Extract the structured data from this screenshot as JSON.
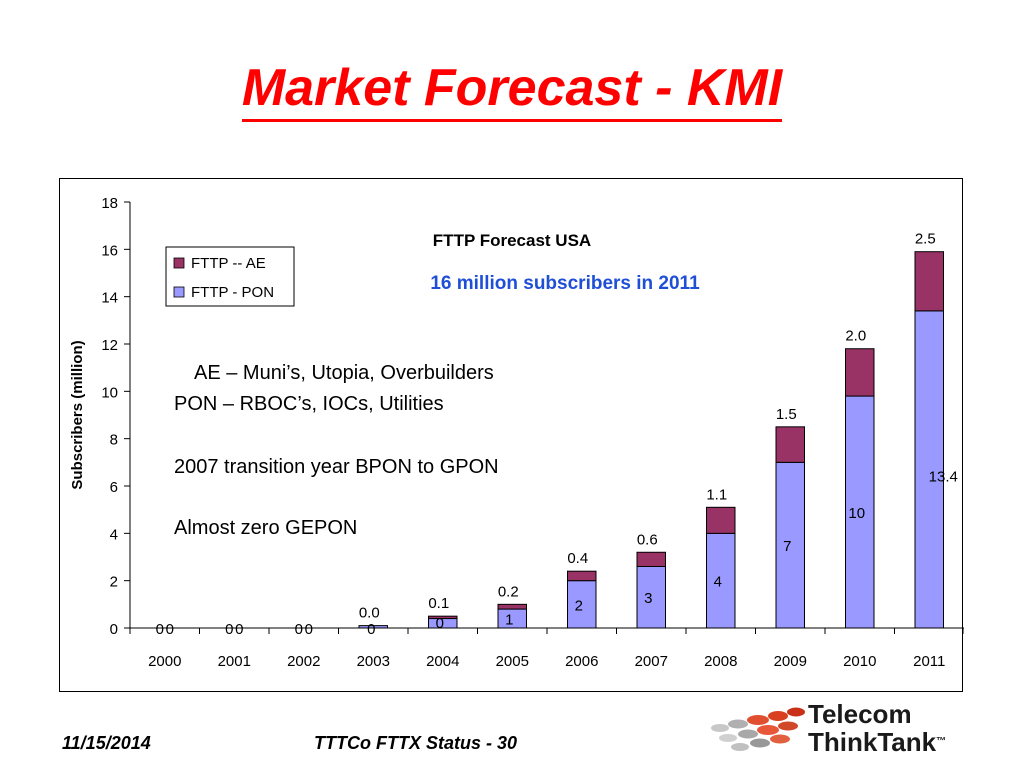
{
  "slide": {
    "title": "Market Forecast - KMI",
    "date": "11/15/2014",
    "footer": "TTTCo FTTX Status - 30",
    "logo_line1": "Telecom",
    "logo_line2": "ThinkTank",
    "logo_tm": "™"
  },
  "chart_data": {
    "type": "bar",
    "stacked": true,
    "title": "FTTP Forecast USA",
    "subtitle": "16 million subscribers in 2011",
    "ylabel": "Subscribers (million)",
    "xlabel": "",
    "ylim": [
      0,
      18
    ],
    "yticks": [
      0,
      2,
      4,
      6,
      8,
      10,
      12,
      14,
      16,
      18
    ],
    "categories": [
      "2000",
      "2001",
      "2002",
      "2003",
      "2004",
      "2005",
      "2006",
      "2007",
      "2008",
      "2009",
      "2010",
      "2011"
    ],
    "series": [
      {
        "name": "FTTP - PON",
        "color": "#9999ff",
        "values": [
          0,
          0,
          0,
          0.1,
          0.4,
          0.8,
          2.0,
          2.6,
          4.0,
          7.0,
          9.8,
          13.4
        ],
        "labels": [
          "0",
          "0",
          "0",
          "0",
          "0",
          "1",
          "2",
          "3",
          "4",
          "7",
          "10",
          "13.4"
        ]
      },
      {
        "name": "FTTP -- AE",
        "color": "#993366",
        "values": [
          0,
          0,
          0,
          0.0,
          0.1,
          0.2,
          0.4,
          0.6,
          1.1,
          1.5,
          2.0,
          2.5
        ],
        "labels": [
          "0",
          "0",
          "0",
          "0.0",
          "0.1",
          "0.2",
          "0.4",
          "0.6",
          "1.1",
          "1.5",
          "2.0",
          "2.5"
        ]
      }
    ],
    "legend_entries": [
      "FTTP -- AE",
      "FTTP - PON"
    ],
    "legend_position": "top-left",
    "annotations": [
      "AE – Muni’s, Utopia, Overbuilders",
      "PON – RBOC’s, IOCs, Utilities",
      "2007 transition year BPON to GPON",
      "Almost zero GEPON"
    ],
    "grid": false
  }
}
